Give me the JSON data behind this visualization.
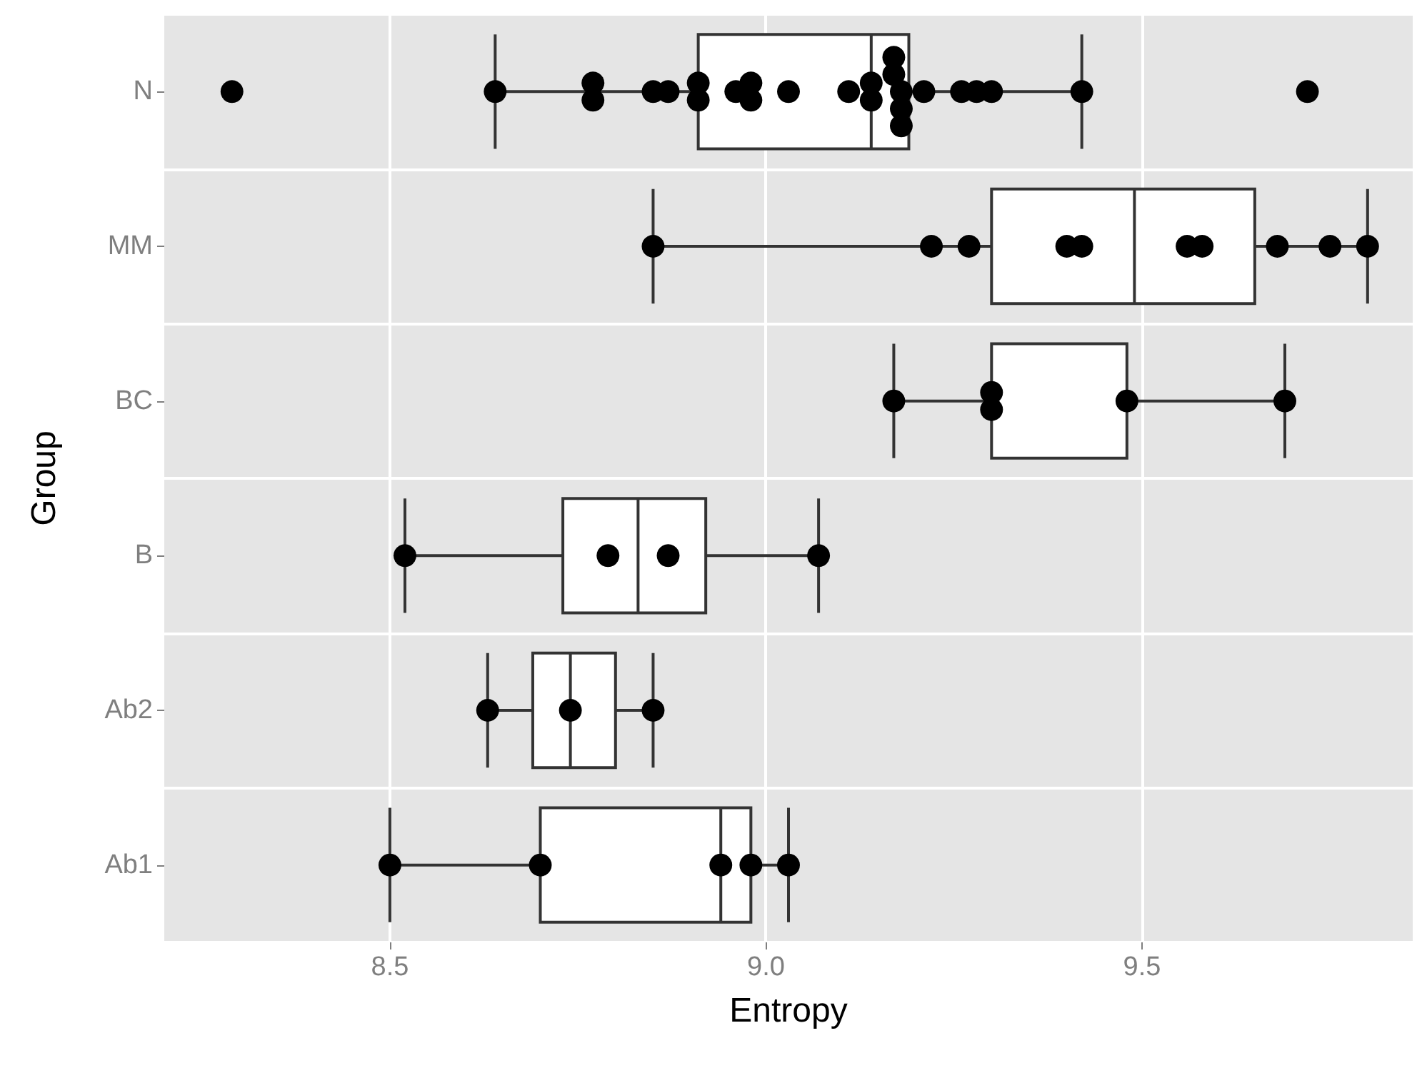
{
  "chart_data": {
    "type": "box",
    "orientation": "horizontal",
    "xlabel": "Entropy",
    "ylabel": "Group",
    "categories": [
      "N",
      "MM",
      "BC",
      "B",
      "Ab2",
      "Ab1"
    ],
    "xlim": [
      8.2,
      9.86
    ],
    "xticks": [
      8.5,
      {
        "value": 9,
        "label": "9.0"
      },
      9.5
    ],
    "grid": true,
    "series": [
      {
        "type": "box",
        "color": "#ffffff",
        "boxes": [
          {
            "low": 8.64,
            "q1": 8.91,
            "median": 9.14,
            "q3": 9.19,
            "high": 9.42,
            "outliers": [
              8.29,
              9.72
            ]
          },
          {
            "low": 8.85,
            "q1": 9.3,
            "median": 9.49,
            "q3": 9.65,
            "high": 9.8
          },
          {
            "low": 9.17,
            "q1": 9.3,
            "median": 9.3,
            "q3": 9.48,
            "high": 9.69
          },
          {
            "low": 8.52,
            "q1": 8.73,
            "median": 8.83,
            "q3": 8.92,
            "high": 9.07
          },
          {
            "low": 8.63,
            "q1": 8.69,
            "median": 8.74,
            "q3": 8.8,
            "high": 8.85
          },
          {
            "low": 8.5,
            "q1": 8.7,
            "median": 8.94,
            "q3": 8.98,
            "high": 9.03
          }
        ]
      },
      {
        "type": "scatter",
        "color": "#000000",
        "marker": "circle",
        "x": [
          "N",
          "N",
          "N",
          "N",
          "N",
          "N",
          "N",
          "N",
          "N",
          "N",
          "N",
          "N",
          "N",
          "N",
          "N",
          "N",
          "N",
          "N",
          "N",
          "N",
          "N",
          "N",
          "N",
          "N",
          "MM",
          "MM",
          "MM",
          "MM",
          "MM",
          "MM",
          "MM",
          "MM",
          "MM",
          "MM",
          "BC",
          "BC",
          "BC",
          "BC",
          "BC",
          "B",
          "B",
          "B",
          "B",
          "Ab2",
          "Ab2",
          "Ab2",
          "Ab1",
          "Ab1",
          "Ab1",
          "Ab1",
          "Ab1"
        ],
        "values": [
          8.64,
          8.77,
          8.77,
          8.85,
          8.87,
          8.91,
          8.91,
          8.96,
          8.98,
          8.98,
          9.03,
          9.11,
          9.14,
          9.14,
          9.17,
          9.17,
          9.18,
          9.18,
          9.18,
          9.21,
          9.26,
          9.28,
          9.3,
          9.42,
          8.85,
          9.22,
          9.27,
          9.4,
          9.42,
          9.56,
          9.58,
          9.68,
          9.75,
          9.8,
          9.17,
          9.3,
          9.3,
          9.48,
          9.69,
          8.52,
          8.79,
          8.87,
          9.07,
          8.63,
          8.74,
          8.85,
          8.5,
          8.7,
          8.94,
          8.98,
          9.03
        ]
      }
    ]
  }
}
